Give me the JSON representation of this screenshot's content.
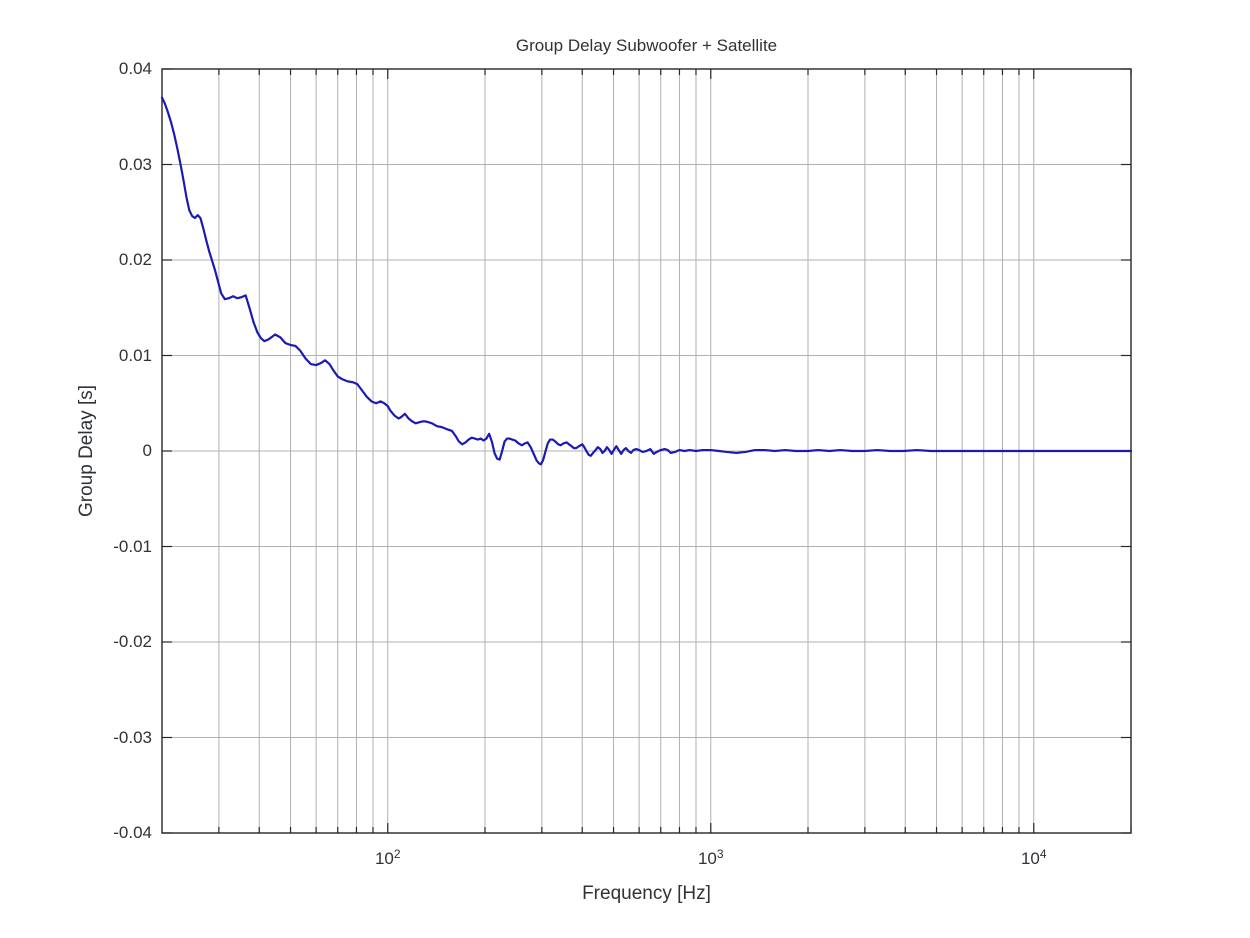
{
  "figure": {
    "title": "Group Delay Subwoofer + Satellite",
    "xlabel": "Frequency [Hz]",
    "ylabel": "Group Delay [s]"
  },
  "chart_data": {
    "type": "line",
    "title": "Group Delay Subwoofer + Satellite",
    "xlabel": "Frequency [Hz]",
    "ylabel": "Group Delay [s]",
    "xscale": "log",
    "xlim": [
      20,
      20000
    ],
    "ylim": [
      -0.04,
      0.04
    ],
    "grid": true,
    "legend": "none",
    "line_color": "#1b1bb3",
    "grid_color": "#b0b0b0",
    "axis_color": "#262626",
    "text_color": "#2f3337",
    "yticks": [
      -0.04,
      -0.03,
      -0.02,
      -0.01,
      0,
      0.01,
      0.02,
      0.03,
      0.04
    ],
    "ytick_labels": [
      "-0.04",
      "-0.03",
      "-0.02",
      "-0.01",
      "0",
      "0.01",
      "0.02",
      "0.03",
      "0.04"
    ],
    "xticks_major": [
      100,
      1000,
      10000
    ],
    "xtick_labels": [
      {
        "base": "10",
        "exp": "2"
      },
      {
        "base": "10",
        "exp": "3"
      },
      {
        "base": "10",
        "exp": "4"
      }
    ],
    "xgrid_minor": [
      30,
      40,
      50,
      60,
      70,
      80,
      90,
      200,
      300,
      400,
      500,
      600,
      700,
      800,
      900,
      2000,
      3000,
      4000,
      5000,
      6000,
      7000,
      8000,
      9000,
      20000
    ],
    "series": [
      {
        "name": "group-delay-sub-plus-satellite",
        "points": [
          [
            20,
            0.037
          ],
          [
            20.4,
            0.0364
          ],
          [
            20.8,
            0.0356
          ],
          [
            21.3,
            0.0345
          ],
          [
            21.8,
            0.0332
          ],
          [
            22.3,
            0.0317
          ],
          [
            22.8,
            0.0301
          ],
          [
            23.3,
            0.0284
          ],
          [
            23.8,
            0.0266
          ],
          [
            24.3,
            0.0252
          ],
          [
            24.8,
            0.0246
          ],
          [
            25.3,
            0.0244
          ],
          [
            25.8,
            0.0247
          ],
          [
            26.3,
            0.0244
          ],
          [
            26.8,
            0.0234
          ],
          [
            27.4,
            0.0221
          ],
          [
            28.0,
            0.0209
          ],
          [
            28.6,
            0.0199
          ],
          [
            29.2,
            0.0189
          ],
          [
            29.9,
            0.0176
          ],
          [
            30.5,
            0.0165
          ],
          [
            31.3,
            0.0159
          ],
          [
            32.2,
            0.016
          ],
          [
            33.2,
            0.0162
          ],
          [
            34.2,
            0.016
          ],
          [
            35.2,
            0.0161
          ],
          [
            36.3,
            0.0163
          ],
          [
            37.3,
            0.015
          ],
          [
            38.4,
            0.0135
          ],
          [
            39.5,
            0.0124
          ],
          [
            40.5,
            0.0118
          ],
          [
            41.5,
            0.0115
          ],
          [
            42.8,
            0.0117
          ],
          [
            44.8,
            0.0122
          ],
          [
            46.5,
            0.0119
          ],
          [
            48.2,
            0.0113
          ],
          [
            50,
            0.0111
          ],
          [
            51.8,
            0.011
          ],
          [
            53.6,
            0.0105
          ],
          [
            55.6,
            0.0097
          ],
          [
            57.8,
            0.0091
          ],
          [
            60,
            0.009
          ],
          [
            62,
            0.0092
          ],
          [
            64,
            0.0095
          ],
          [
            66,
            0.0091
          ],
          [
            68,
            0.0084
          ],
          [
            70,
            0.0078
          ],
          [
            72.5,
            0.0075
          ],
          [
            75,
            0.0073
          ],
          [
            78,
            0.0072
          ],
          [
            80.5,
            0.007
          ],
          [
            83,
            0.0064
          ],
          [
            86,
            0.0057
          ],
          [
            89,
            0.0052
          ],
          [
            92,
            0.005
          ],
          [
            95,
            0.0052
          ],
          [
            97.5,
            0.005
          ],
          [
            100,
            0.0047
          ],
          [
            102,
            0.0042
          ],
          [
            105,
            0.0037
          ],
          [
            108,
            0.0034
          ],
          [
            110.5,
            0.0036
          ],
          [
            113,
            0.0039
          ],
          [
            116,
            0.0034
          ],
          [
            119,
            0.0031
          ],
          [
            122,
            0.0029
          ],
          [
            125,
            0.003
          ],
          [
            128,
            0.0031
          ],
          [
            131,
            0.0031
          ],
          [
            134,
            0.003
          ],
          [
            137,
            0.0029
          ],
          [
            142,
            0.0026
          ],
          [
            147,
            0.0025
          ],
          [
            152,
            0.0023
          ],
          [
            158,
            0.0021
          ],
          [
            162,
            0.0016
          ],
          [
            166,
            0.001
          ],
          [
            170,
            0.0007
          ],
          [
            174,
            0.0009
          ],
          [
            178,
            0.0012
          ],
          [
            182,
            0.0014
          ],
          [
            186,
            0.0013
          ],
          [
            190,
            0.0012
          ],
          [
            194,
            0.0013
          ],
          [
            198,
            0.0011
          ],
          [
            202,
            0.0013
          ],
          [
            206,
            0.0018
          ],
          [
            210,
            0.001
          ],
          [
            214,
            -0.0002
          ],
          [
            218,
            -0.0008
          ],
          [
            222,
            -0.0009
          ],
          [
            226,
            0.0
          ],
          [
            230,
            0.001
          ],
          [
            234,
            0.0013
          ],
          [
            238,
            0.0013
          ],
          [
            243,
            0.0012
          ],
          [
            248,
            0.0011
          ],
          [
            254,
            0.0008
          ],
          [
            260,
            0.0006
          ],
          [
            266,
            0.0008
          ],
          [
            271,
            0.0009
          ],
          [
            277,
            0.0004
          ],
          [
            283,
            -0.0003
          ],
          [
            289,
            -0.001
          ],
          [
            294,
            -0.0013
          ],
          [
            298,
            -0.0014
          ],
          [
            303,
            -0.0009
          ],
          [
            308,
            0.0
          ],
          [
            313,
            0.0008
          ],
          [
            318,
            0.0012
          ],
          [
            324,
            0.0012
          ],
          [
            330,
            0.001
          ],
          [
            337,
            0.0007
          ],
          [
            343,
            0.0006
          ],
          [
            350,
            0.0008
          ],
          [
            358,
            0.0009
          ],
          [
            364,
            0.0007
          ],
          [
            371,
            0.0005
          ],
          [
            377,
            0.0003
          ],
          [
            383,
            0.0003
          ],
          [
            391,
            0.0005
          ],
          [
            400,
            0.0007
          ],
          [
            406,
            0.0004
          ],
          [
            412,
            0.0
          ],
          [
            419,
            -0.0004
          ],
          [
            425,
            -0.0005
          ],
          [
            432,
            -0.0002
          ],
          [
            440,
            0.0001
          ],
          [
            447,
            0.0004
          ],
          [
            455,
            0.0002
          ],
          [
            462,
            -0.0002
          ],
          [
            469,
            0.0
          ],
          [
            477,
            0.0004
          ],
          [
            485,
            0.0001
          ],
          [
            493,
            -0.0003
          ],
          [
            501,
            0.0001
          ],
          [
            510,
            0.0005
          ],
          [
            519,
            0.0001
          ],
          [
            528,
            -0.0003
          ],
          [
            537,
            0.0001
          ],
          [
            546,
            0.0003
          ],
          [
            556,
            0.0
          ],
          [
            566,
            -0.0002
          ],
          [
            576,
            0.0001
          ],
          [
            588,
            0.0002
          ],
          [
            600,
            0.0001
          ],
          [
            615,
            -0.0001
          ],
          [
            632,
            0.0
          ],
          [
            650,
            0.0002
          ],
          [
            666,
            -0.0003
          ],
          [
            680,
            -0.0001
          ],
          [
            700,
            0.0001
          ],
          [
            720,
            0.0002
          ],
          [
            736,
            0.0001
          ],
          [
            752,
            -0.0002
          ],
          [
            775,
            -0.0001
          ],
          [
            800,
            0.0001
          ],
          [
            830,
            0.0
          ],
          [
            860,
            0.0001
          ],
          [
            900,
            0.0
          ],
          [
            945,
            0.0001
          ],
          [
            1000,
            0.0001
          ],
          [
            1060,
            0.0
          ],
          [
            1120,
            -0.0001
          ],
          [
            1200,
            -0.0002
          ],
          [
            1280,
            -0.0001
          ],
          [
            1370,
            0.0001
          ],
          [
            1470,
            0.0001
          ],
          [
            1580,
            0.0
          ],
          [
            1700,
            0.0001
          ],
          [
            1830,
            0.0
          ],
          [
            2000,
            0.0
          ],
          [
            2150,
            0.0001
          ],
          [
            2330,
            0.0
          ],
          [
            2520,
            0.0001
          ],
          [
            2740,
            0.0
          ],
          [
            3000,
            0.0
          ],
          [
            3280,
            0.0001
          ],
          [
            3600,
            0.0
          ],
          [
            3950,
            0.0
          ],
          [
            4350,
            0.0001
          ],
          [
            4800,
            0.0
          ],
          [
            5300,
            0.0
          ],
          [
            5900,
            0.0
          ],
          [
            6500,
            0.0
          ],
          [
            7200,
            0.0
          ],
          [
            8000,
            0.0
          ],
          [
            8900,
            0.0
          ],
          [
            10000,
            0.0
          ],
          [
            11200,
            0.0
          ],
          [
            12600,
            0.0
          ],
          [
            14300,
            0.0
          ],
          [
            16200,
            0.0
          ],
          [
            18000,
            0.0
          ],
          [
            20000,
            0.0
          ]
        ]
      }
    ]
  }
}
